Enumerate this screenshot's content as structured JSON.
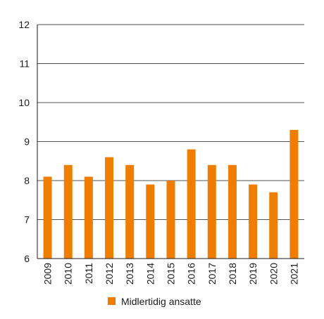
{
  "chart_data": {
    "type": "bar",
    "categories": [
      "2009",
      "2010",
      "2011",
      "2012",
      "2013",
      "2014",
      "2015",
      "2016",
      "2017",
      "2018",
      "2019",
      "2020",
      "2021"
    ],
    "series": [
      {
        "name": "Midlertidig ansatte",
        "values": [
          8.1,
          8.4,
          8.1,
          8.6,
          8.4,
          7.9,
          8.0,
          8.8,
          8.4,
          8.4,
          7.9,
          7.7,
          9.3
        ],
        "color": "#ef7d00"
      }
    ],
    "title": "",
    "xlabel": "",
    "ylabel": "",
    "ylim": [
      6,
      12
    ],
    "yticks": [
      6,
      7,
      8,
      9,
      10,
      11,
      12
    ],
    "grid": true,
    "legend_position": "bottom"
  }
}
